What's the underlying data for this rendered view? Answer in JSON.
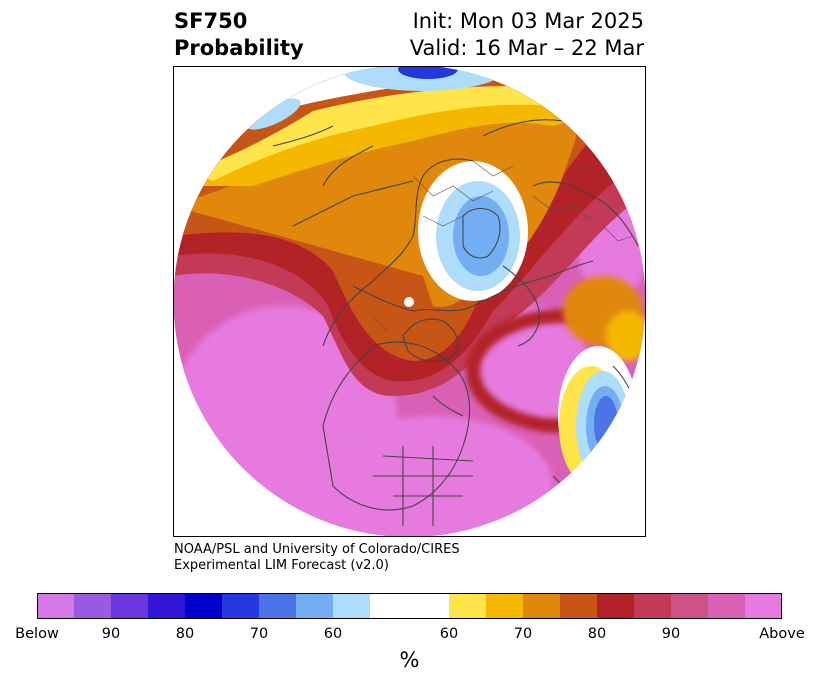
{
  "header": {
    "variable": "SF750",
    "kind": "Probability",
    "init": "Init: Mon 03 Mar 2025",
    "valid": "Valid: 16 Mar – 22 Mar"
  },
  "credit": {
    "line1": "NOAA/PSL and University of Colorado/CIRES",
    "line2": "Experimental LIM Forecast (v2.0)"
  },
  "colorbar": {
    "unit": "%",
    "below_colors": [
      "#d478e8",
      "#9b59e1",
      "#6a38dd",
      "#3218d6",
      "#0000cd",
      "#2538df",
      "#4c74e8",
      "#73aef2",
      "#aedcfb"
    ],
    "neutral_color": "#ffffff",
    "above_colors": [
      "#ffe44a",
      "#f4b800",
      "#e0880c",
      "#c75516",
      "#b22227",
      "#c23a55",
      "#cf5189",
      "#da60b6",
      "#e67ade"
    ],
    "tick_labels": [
      "Below",
      "90",
      "80",
      "70",
      "60",
      "60",
      "70",
      "80",
      "90",
      "Above"
    ]
  },
  "map": {
    "projection": "north-polar-stereographic",
    "field": "SF750 above/below normal probability",
    "colors": {
      "above_max": "#e67ade",
      "above_high": "#da60b6",
      "above_mid": "#c23a55",
      "above_red": "#b22227",
      "above_orange": "#c75516",
      "above_amber": "#e0880c",
      "above_gold": "#f4b800",
      "above_yellow": "#ffe44a",
      "below_light": "#aedcfb",
      "below_mid": "#73aef2",
      "below_strong": "#4c74e8",
      "below_deep": "#2538df",
      "coast": "#444444"
    }
  }
}
